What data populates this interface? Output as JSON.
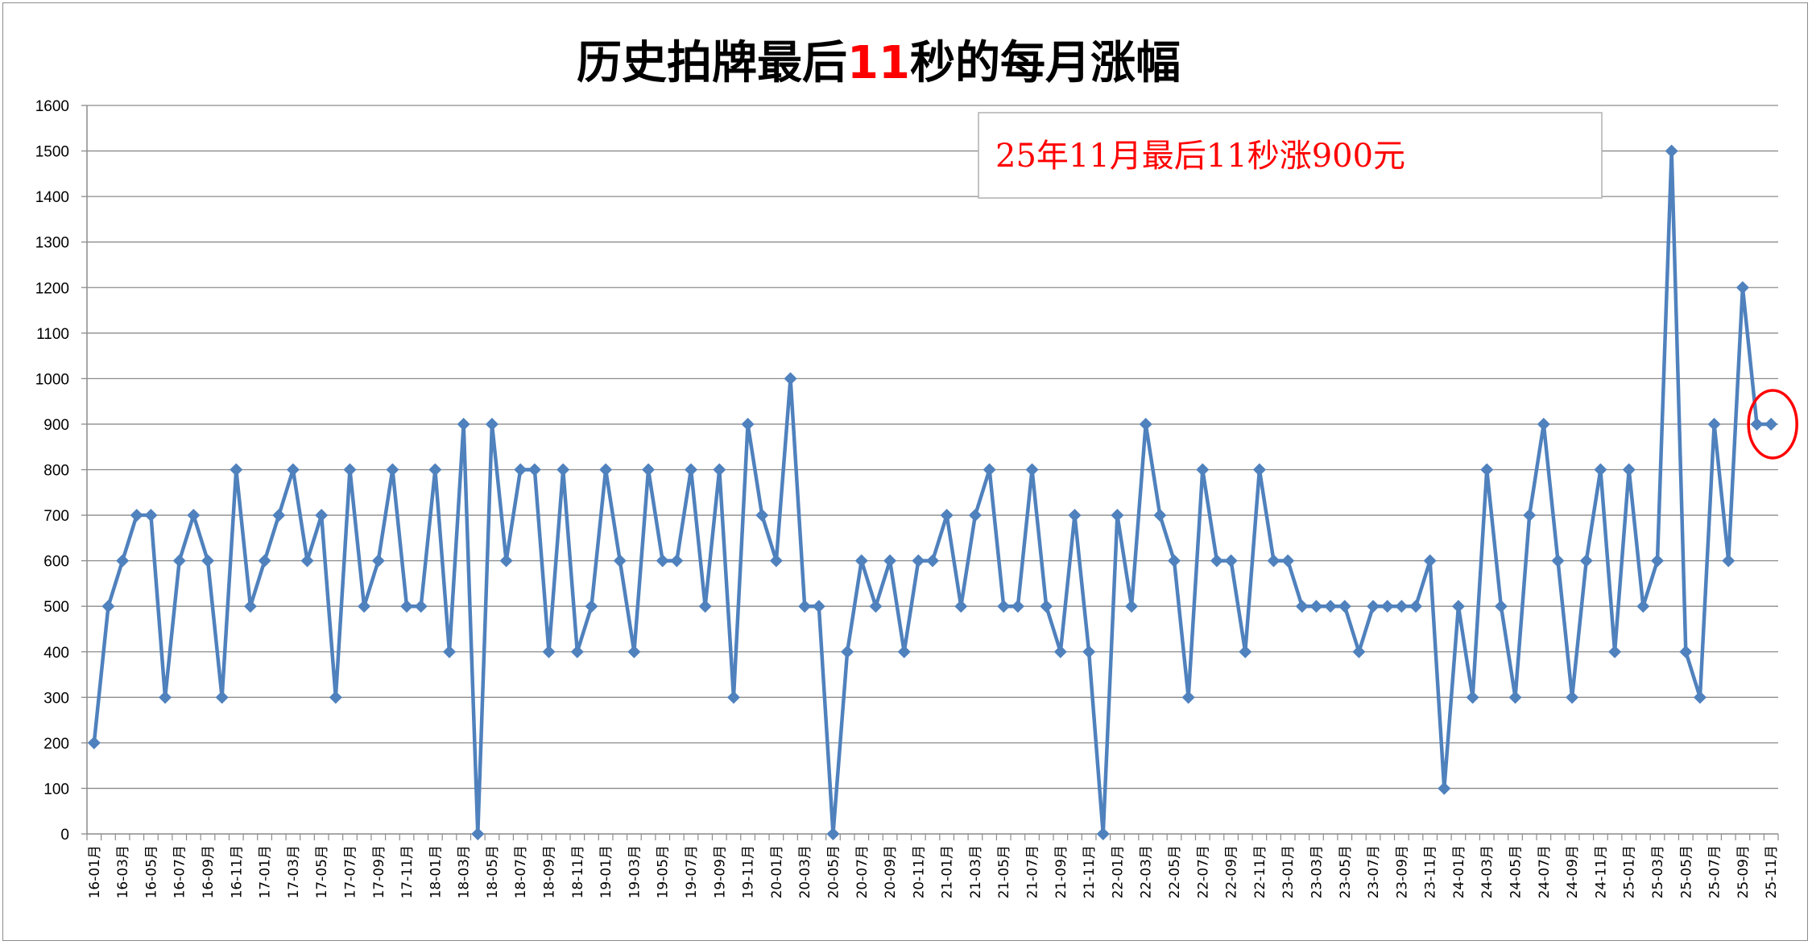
{
  "chart_data": {
    "type": "line",
    "title": "历史拍牌最后11秒的每月涨幅",
    "title_parts": {
      "before": "历史拍牌最后",
      "highlight": "11",
      "after": "秒的每月涨幅"
    },
    "title_highlight_color": "#ff0000",
    "annotation": "25年11月最后11秒涨900元",
    "annotation_color": "#ff0000",
    "line_color": "#4f81bd",
    "ylim": [
      0,
      1600
    ],
    "yticks": [
      0,
      100,
      200,
      300,
      400,
      500,
      600,
      700,
      800,
      900,
      1000,
      1100,
      1200,
      1300,
      1400,
      1500,
      1600
    ],
    "grid": true,
    "highlight_last_point": true,
    "x": [
      "16-01月",
      "16-02月",
      "16-03月",
      "16-04月",
      "16-05月",
      "16-06月",
      "16-07月",
      "16-08月",
      "16-09月",
      "16-10月",
      "16-11月",
      "16-12月",
      "17-01月",
      "17-02月",
      "17-03月",
      "17-04月",
      "17-05月",
      "17-06月",
      "17-07月",
      "17-08月",
      "17-09月",
      "17-10月",
      "17-11月",
      "17-12月",
      "18-01月",
      "18-02月",
      "18-03月",
      "18-04月",
      "18-05月",
      "18-06月",
      "18-07月",
      "18-08月",
      "18-09月",
      "18-10月",
      "18-11月",
      "18-12月",
      "19-01月",
      "19-02月",
      "19-03月",
      "19-04月",
      "19-05月",
      "19-06月",
      "19-07月",
      "19-08月",
      "19-09月",
      "19-10月",
      "19-11月",
      "19-12月",
      "20-01月",
      "20-02月",
      "20-03月",
      "20-04月",
      "20-05月",
      "20-06月",
      "20-07月",
      "20-08月",
      "20-09月",
      "20-10月",
      "20-11月",
      "20-12月",
      "21-01月",
      "21-02月",
      "21-03月",
      "21-04月",
      "21-05月",
      "21-06月",
      "21-07月",
      "21-08月",
      "21-09月",
      "21-10月",
      "21-11月",
      "21-12月",
      "22-01月",
      "22-02月",
      "22-03月",
      "22-04月",
      "22-05月",
      "22-06月",
      "22-07月",
      "22-08月",
      "22-09月",
      "22-10月",
      "22-11月",
      "22-12月",
      "23-01月",
      "23-02月",
      "23-03月",
      "23-04月",
      "23-05月",
      "23-06月",
      "23-07月",
      "23-08月",
      "23-09月",
      "23-10月",
      "23-11月",
      "23-12月",
      "24-01月",
      "24-02月",
      "24-03月",
      "24-04月",
      "24-05月",
      "24-06月",
      "24-07月",
      "24-08月",
      "24-09月",
      "24-10月",
      "24-11月",
      "24-12月",
      "25-01月",
      "25-02月",
      "25-03月",
      "25-04月",
      "25-05月",
      "25-06月",
      "25-07月",
      "25-08月",
      "25-09月",
      "25-10月",
      "25-11月"
    ],
    "values": [
      200,
      500,
      600,
      700,
      700,
      300,
      600,
      700,
      600,
      300,
      800,
      500,
      600,
      700,
      800,
      600,
      700,
      300,
      800,
      500,
      600,
      800,
      500,
      500,
      800,
      400,
      900,
      0,
      900,
      600,
      800,
      800,
      400,
      800,
      400,
      500,
      800,
      600,
      400,
      800,
      600,
      600,
      800,
      500,
      800,
      300,
      900,
      700,
      600,
      1000,
      500,
      500,
      0,
      400,
      600,
      500,
      600,
      400,
      600,
      600,
      700,
      500,
      700,
      800,
      500,
      500,
      800,
      500,
      400,
      700,
      400,
      0,
      700,
      500,
      900,
      700,
      600,
      300,
      800,
      600,
      600,
      400,
      800,
      600,
      600,
      500,
      500,
      500,
      500,
      400,
      500,
      500,
      500,
      500,
      600,
      100,
      500,
      300,
      800,
      500,
      300,
      700,
      900,
      600,
      300,
      600,
      800,
      400,
      800,
      500,
      600,
      1500,
      400,
      300,
      900,
      600,
      1200,
      900,
      900
    ]
  }
}
